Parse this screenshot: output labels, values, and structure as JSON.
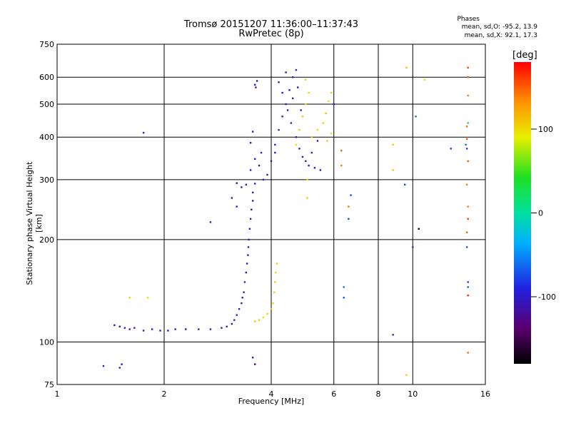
{
  "title_line1": "Tromsø 20151207 11:36:00–11:37:43",
  "title_line2": "RwPretec (8p)",
  "stats": {
    "heading": "Phases",
    "o_mode": "mean, sd,O: -95.2, 13.9",
    "x_mode": "mean, sd,X:  92.1, 17.3"
  },
  "colorbar": {
    "unit": "[deg]",
    "range": [
      -180,
      180
    ],
    "ticks": [
      100,
      0,
      -100
    ],
    "tick_labels": [
      "100",
      "0",
      "-100"
    ]
  },
  "chart_data": {
    "type": "scatter",
    "title": "Tromsø 20151207 11:36:00–11:37:43 RwPretec (8p)",
    "xlabel": "Frequency [MHz]",
    "ylabel": "Stationary phase Virtual Height [km]",
    "x_scale": "log",
    "y_scale": "log",
    "xlim": [
      1,
      16
    ],
    "ylim": [
      75,
      750
    ],
    "x_ticks": [
      1,
      2,
      4,
      6,
      8,
      10,
      16
    ],
    "x_tick_labels": [
      "1",
      "2",
      "4",
      "6",
      "8",
      "10",
      "16"
    ],
    "y_ticks": [
      75,
      100,
      200,
      300,
      400,
      500,
      600,
      750
    ],
    "y_tick_labels": [
      "75",
      "100",
      "200",
      "300",
      "400",
      "500",
      "600",
      "750"
    ],
    "grid": true,
    "color_by": "phase [deg]",
    "series": [
      {
        "points": [
          [
            1.35,
            85,
            -110
          ],
          [
            1.5,
            84,
            -100
          ],
          [
            1.52,
            86,
            -90
          ],
          [
            1.45,
            112,
            -100
          ],
          [
            1.5,
            111,
            -110
          ],
          [
            1.55,
            110,
            -95
          ],
          [
            1.6,
            109,
            -105
          ],
          [
            1.65,
            110,
            -100
          ],
          [
            1.75,
            108,
            -110
          ],
          [
            1.85,
            109,
            -100
          ],
          [
            1.95,
            108,
            -95
          ],
          [
            2.05,
            108,
            -105
          ],
          [
            2.15,
            109,
            -100
          ],
          [
            2.3,
            109,
            -110
          ],
          [
            2.5,
            109,
            -100
          ],
          [
            2.7,
            109,
            -95
          ],
          [
            2.9,
            110,
            -105
          ],
          [
            3.0,
            111,
            -100
          ],
          [
            3.1,
            113,
            -110
          ],
          [
            3.15,
            116,
            -100
          ],
          [
            3.2,
            120,
            -95
          ],
          [
            3.25,
            125,
            -105
          ],
          [
            3.3,
            130,
            -100
          ],
          [
            3.32,
            135,
            -110
          ],
          [
            3.35,
            140,
            -100
          ],
          [
            3.37,
            150,
            -95
          ],
          [
            3.4,
            160,
            -105
          ],
          [
            3.42,
            170,
            -100
          ],
          [
            3.44,
            180,
            -110
          ],
          [
            3.45,
            190,
            -100
          ],
          [
            3.46,
            200,
            -95
          ],
          [
            3.48,
            215,
            -105
          ],
          [
            3.5,
            230,
            -100
          ],
          [
            3.52,
            245,
            -110
          ],
          [
            3.55,
            260,
            -100
          ],
          [
            3.55,
            275,
            -95
          ],
          [
            3.3,
            285,
            -105
          ],
          [
            3.4,
            290,
            -100
          ],
          [
            3.2,
            293,
            -110
          ],
          [
            3.6,
            292,
            -100
          ],
          [
            3.8,
            300,
            -95
          ],
          [
            3.9,
            310,
            -105
          ],
          [
            3.5,
            320,
            -100
          ],
          [
            3.7,
            330,
            -110
          ],
          [
            3.6,
            345,
            -100
          ],
          [
            3.75,
            360,
            -95
          ],
          [
            3.5,
            385,
            -105
          ],
          [
            3.55,
            415,
            -100
          ],
          [
            2.7,
            225,
            -110
          ],
          [
            1.75,
            412,
            -100
          ],
          [
            3.1,
            265,
            -105
          ],
          [
            3.2,
            250,
            -100
          ],
          [
            3.6,
            570,
            -95
          ],
          [
            3.65,
            585,
            -105
          ],
          [
            3.62,
            560,
            -100
          ],
          [
            4.0,
            340,
            -110
          ],
          [
            4.1,
            380,
            -100
          ],
          [
            4.2,
            420,
            -95
          ],
          [
            4.3,
            460,
            -105
          ],
          [
            4.4,
            500,
            -100
          ],
          [
            4.5,
            550,
            -110
          ],
          [
            4.6,
            600,
            -100
          ],
          [
            4.7,
            630,
            -95
          ],
          [
            4.4,
            620,
            -105
          ],
          [
            4.2,
            580,
            -100
          ],
          [
            4.3,
            540,
            -110
          ],
          [
            4.45,
            480,
            -100
          ],
          [
            4.55,
            440,
            -95
          ],
          [
            4.7,
            400,
            -105
          ],
          [
            4.8,
            370,
            -100
          ],
          [
            4.9,
            350,
            -110
          ],
          [
            5.0,
            340,
            -100
          ],
          [
            5.1,
            330,
            -95
          ],
          [
            5.3,
            325,
            -105
          ],
          [
            5.5,
            320,
            -100
          ],
          [
            4.1,
            360,
            -110
          ],
          [
            4.6,
            520,
            -100
          ],
          [
            4.75,
            560,
            -95
          ],
          [
            4.85,
            480,
            -105
          ],
          [
            5.2,
            360,
            -100
          ],
          [
            5.4,
            390,
            -110
          ],
          [
            3.55,
            90,
            -100
          ],
          [
            3.6,
            86,
            -130
          ],
          [
            3.6,
            115,
            105
          ],
          [
            3.7,
            116,
            110
          ],
          [
            3.8,
            118,
            100
          ],
          [
            3.9,
            121,
            105
          ],
          [
            4.0,
            125,
            110
          ],
          [
            4.05,
            130,
            100
          ],
          [
            4.08,
            140,
            105
          ],
          [
            4.1,
            150,
            110
          ],
          [
            4.12,
            160,
            100
          ],
          [
            4.15,
            170,
            105
          ],
          [
            4.7,
            380,
            100
          ],
          [
            4.8,
            420,
            105
          ],
          [
            4.9,
            460,
            110
          ],
          [
            5.0,
            500,
            100
          ],
          [
            5.1,
            540,
            105
          ],
          [
            5.2,
            400,
            110
          ],
          [
            5.4,
            420,
            100
          ],
          [
            5.6,
            440,
            105
          ],
          [
            5.7,
            470,
            110
          ],
          [
            5.8,
            510,
            100
          ],
          [
            5.9,
            540,
            105
          ],
          [
            5.75,
            390,
            110
          ],
          [
            5.9,
            410,
            100
          ],
          [
            5.0,
            590,
            105
          ],
          [
            5.05,
            300,
            100
          ],
          [
            5.05,
            265,
            110
          ],
          [
            1.6,
            135,
            105
          ],
          [
            1.8,
            135,
            100
          ],
          [
            9.6,
            640,
            110
          ],
          [
            9.6,
            80,
            105
          ],
          [
            10.8,
            590,
            100
          ],
          [
            8.8,
            380,
            110
          ],
          [
            8.8,
            320,
            105
          ],
          [
            6.3,
            365,
            150
          ],
          [
            6.3,
            330,
            140
          ],
          [
            6.6,
            250,
            145
          ],
          [
            14.3,
            640,
            160
          ],
          [
            14.3,
            600,
            150
          ],
          [
            14.3,
            530,
            140
          ],
          [
            14.2,
            430,
            145
          ],
          [
            14.2,
            395,
            155
          ],
          [
            14.3,
            340,
            150
          ],
          [
            14.2,
            290,
            140
          ],
          [
            14.3,
            230,
            160
          ],
          [
            14.2,
            210,
            150
          ],
          [
            14.3,
            137,
            170
          ],
          [
            14.3,
            93,
            145
          ],
          [
            14.3,
            250,
            140
          ],
          [
            14.3,
            440,
            30
          ],
          [
            14.2,
            370,
            -80
          ],
          [
            14.1,
            380,
            -60
          ],
          [
            12.8,
            370,
            -80
          ],
          [
            14.2,
            190,
            -70
          ],
          [
            14.3,
            150,
            -80
          ],
          [
            14.3,
            145,
            -70
          ],
          [
            10.2,
            460,
            -60
          ],
          [
            10.0,
            190,
            -80
          ],
          [
            10.4,
            215,
            -170
          ],
          [
            9.5,
            290,
            -80
          ],
          [
            8.8,
            105,
            -85
          ],
          [
            6.0,
            500,
            -90
          ],
          [
            6.4,
            135,
            -70
          ],
          [
            6.4,
            145,
            -60
          ],
          [
            6.7,
            270,
            -75
          ],
          [
            6.6,
            230,
            -80
          ]
        ]
      }
    ]
  }
}
